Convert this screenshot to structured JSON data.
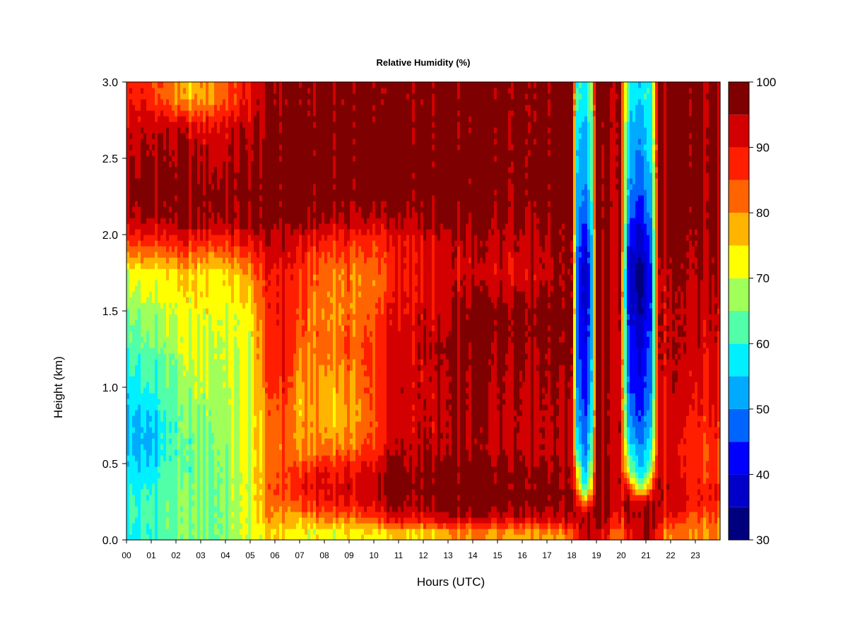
{
  "chart_data": {
    "type": "heatmap",
    "title": "Relative Humidity (%)",
    "xlabel": "Hours (UTC)",
    "ylabel": "Height (km)",
    "xlim": [
      0,
      24
    ],
    "ylim": [
      0.0,
      3.0
    ],
    "x_ticks": [
      "00",
      "01",
      "02",
      "03",
      "04",
      "05",
      "06",
      "07",
      "08",
      "09",
      "10",
      "11",
      "12",
      "13",
      "14",
      "15",
      "16",
      "17",
      "18",
      "19",
      "20",
      "21",
      "22",
      "23"
    ],
    "y_ticks": [
      "0.0",
      "0.5",
      "1.0",
      "1.5",
      "2.0",
      "2.5",
      "3.0"
    ],
    "colorbar": {
      "levels": [
        30,
        35,
        40,
        45,
        50,
        55,
        60,
        65,
        70,
        75,
        80,
        85,
        90,
        95,
        100
      ],
      "tick_labels": [
        "30",
        "40",
        "50",
        "60",
        "70",
        "80",
        "90",
        "100"
      ],
      "colors": [
        "#00007f",
        "#0000c8",
        "#0000ff",
        "#0064ff",
        "#00aaff",
        "#00f0ff",
        "#50ffa8",
        "#a0ff58",
        "#ffff00",
        "#ffb400",
        "#ff6400",
        "#ff1e00",
        "#d20000",
        "#7f0000"
      ]
    },
    "heights_km": [
      0.05,
      0.15,
      0.25,
      0.35,
      0.45,
      0.6,
      0.8,
      1.0,
      1.25,
      1.5,
      1.75,
      1.95,
      2.1,
      2.25,
      2.45,
      2.7,
      2.9
    ],
    "profiles": [
      {
        "hour": 0.0,
        "rh": [
          58,
          60,
          61,
          60,
          58,
          56,
          55,
          58,
          62,
          66,
          72,
          86,
          93,
          96,
          94,
          92,
          90
        ]
      },
      {
        "hour": 0.5,
        "rh": [
          58,
          60,
          60,
          58,
          55,
          52,
          53,
          58,
          62,
          66,
          72,
          86,
          94,
          97,
          95,
          93,
          88
        ]
      },
      {
        "hour": 1.0,
        "rh": [
          60,
          62,
          62,
          60,
          57,
          54,
          55,
          60,
          64,
          68,
          73,
          87,
          95,
          97,
          96,
          94,
          86
        ]
      },
      {
        "hour": 1.5,
        "rh": [
          62,
          63,
          63,
          62,
          61,
          60,
          60,
          62,
          65,
          70,
          73,
          87,
          95,
          97,
          96,
          94,
          84
        ]
      },
      {
        "hour": 2.0,
        "rh": [
          64,
          64,
          64,
          64,
          63,
          62,
          62,
          64,
          67,
          71,
          74,
          88,
          96,
          97,
          96,
          93,
          80
        ]
      },
      {
        "hour": 2.5,
        "rh": [
          64,
          64,
          64,
          64,
          63,
          63,
          65,
          67,
          70,
          72,
          75,
          88,
          96,
          97,
          96,
          92,
          76
        ]
      },
      {
        "hour": 3.0,
        "rh": [
          65,
          65,
          65,
          65,
          64,
          64,
          66,
          68,
          71,
          72,
          74,
          87,
          96,
          97,
          95,
          91,
          78
        ]
      },
      {
        "hour": 3.5,
        "rh": [
          65,
          65,
          65,
          65,
          65,
          66,
          67,
          68,
          70,
          72,
          74,
          87,
          96,
          97,
          95,
          91,
          80
        ]
      },
      {
        "hour": 4.0,
        "rh": [
          66,
          66,
          66,
          66,
          66,
          67,
          68,
          69,
          70,
          72,
          75,
          87,
          96,
          97,
          95,
          92,
          84
        ]
      },
      {
        "hour": 4.5,
        "rh": [
          68,
          68,
          68,
          68,
          68,
          69,
          69,
          70,
          71,
          72,
          76,
          88,
          96,
          97,
          96,
          93,
          86
        ]
      },
      {
        "hour": 5.0,
        "rh": [
          70,
          70,
          70,
          70,
          71,
          71,
          71,
          72,
          72,
          73,
          80,
          90,
          97,
          98,
          96,
          94,
          90
        ]
      },
      {
        "hour": 5.5,
        "rh": [
          74,
          76,
          78,
          78,
          78,
          77,
          78,
          80,
          82,
          84,
          86,
          92,
          97,
          98,
          97,
          95,
          94
        ]
      },
      {
        "hour": 6.0,
        "rh": [
          76,
          80,
          84,
          86,
          84,
          82,
          84,
          87,
          89,
          90,
          90,
          94,
          97,
          98,
          98,
          97,
          96
        ]
      },
      {
        "hour": 6.5,
        "rh": [
          75,
          78,
          82,
          86,
          86,
          84,
          85,
          87,
          89,
          90,
          90,
          93,
          97,
          98,
          98,
          98,
          97
        ]
      },
      {
        "hour": 7.0,
        "rh": [
          73,
          78,
          85,
          88,
          86,
          78,
          76,
          77,
          82,
          84,
          86,
          90,
          97,
          98,
          98,
          98,
          97
        ]
      },
      {
        "hour": 7.5,
        "rh": [
          72,
          80,
          88,
          90,
          88,
          80,
          78,
          80,
          82,
          82,
          84,
          89,
          97,
          98,
          98,
          98,
          97
        ]
      },
      {
        "hour": 8.0,
        "rh": [
          72,
          82,
          89,
          91,
          90,
          82,
          78,
          78,
          82,
          80,
          82,
          88,
          96,
          98,
          98,
          98,
          97
        ]
      },
      {
        "hour": 8.5,
        "rh": [
          72,
          82,
          90,
          92,
          90,
          82,
          76,
          78,
          82,
          80,
          82,
          88,
          95,
          98,
          98,
          98,
          97
        ]
      },
      {
        "hour": 9.0,
        "rh": [
          72,
          82,
          90,
          92,
          90,
          82,
          78,
          80,
          84,
          82,
          82,
          88,
          95,
          98,
          98,
          98,
          97
        ]
      },
      {
        "hour": 9.5,
        "rh": [
          74,
          84,
          91,
          92,
          91,
          84,
          80,
          82,
          84,
          82,
          80,
          86,
          94,
          98,
          98,
          98,
          97
        ]
      },
      {
        "hour": 10.0,
        "rh": [
          74,
          86,
          92,
          94,
          92,
          86,
          84,
          86,
          86,
          84,
          82,
          86,
          94,
          98,
          98,
          98,
          97
        ]
      },
      {
        "hour": 10.5,
        "rh": [
          74,
          90,
          96,
          98,
          96,
          92,
          90,
          90,
          90,
          88,
          86,
          88,
          94,
          98,
          98,
          98,
          97
        ]
      },
      {
        "hour": 11.0,
        "rh": [
          76,
          92,
          97,
          98,
          98,
          94,
          92,
          92,
          92,
          90,
          89,
          90,
          95,
          98,
          98,
          98,
          97
        ]
      },
      {
        "hour": 11.5,
        "rh": [
          76,
          92,
          96,
          98,
          96,
          94,
          92,
          93,
          93,
          92,
          90,
          91,
          95,
          98,
          98,
          98,
          97
        ]
      },
      {
        "hour": 12.0,
        "rh": [
          76,
          90,
          95,
          97,
          96,
          94,
          92,
          92,
          93,
          92,
          90,
          92,
          95,
          98,
          98,
          98,
          97
        ]
      },
      {
        "hour": 12.5,
        "rh": [
          77,
          92,
          96,
          98,
          97,
          94,
          93,
          93,
          94,
          92,
          90,
          92,
          96,
          98,
          98,
          98,
          97
        ]
      },
      {
        "hour": 13.0,
        "rh": [
          78,
          94,
          97,
          98,
          97,
          94,
          94,
          94,
          95,
          93,
          91,
          93,
          96,
          98,
          98,
          98,
          97
        ]
      },
      {
        "hour": 13.5,
        "rh": [
          80,
          95,
          98,
          98,
          98,
          95,
          95,
          95,
          96,
          95,
          92,
          93,
          96,
          98,
          98,
          98,
          97
        ]
      },
      {
        "hour": 14.0,
        "rh": [
          80,
          95,
          98,
          98,
          98,
          95,
          95,
          96,
          97,
          98,
          92,
          94,
          97,
          98,
          98,
          98,
          98
        ]
      },
      {
        "hour": 14.5,
        "rh": [
          80,
          95,
          98,
          98,
          98,
          95,
          95,
          96,
          97,
          98,
          92,
          95,
          97,
          98,
          98,
          98,
          98
        ]
      },
      {
        "hour": 15.0,
        "rh": [
          80,
          95,
          98,
          98,
          98,
          95,
          95,
          96,
          97,
          98,
          92,
          95,
          97,
          98,
          98,
          98,
          98
        ]
      },
      {
        "hour": 15.5,
        "rh": [
          80,
          95,
          98,
          98,
          98,
          95,
          95,
          96,
          97,
          98,
          92,
          95,
          97,
          98,
          98,
          98,
          98
        ]
      },
      {
        "hour": 16.0,
        "rh": [
          80,
          95,
          98,
          98,
          98,
          95,
          95,
          96,
          97,
          98,
          92,
          95,
          97,
          98,
          98,
          98,
          98
        ]
      },
      {
        "hour": 16.5,
        "rh": [
          80,
          95,
          98,
          98,
          98,
          95,
          95,
          96,
          97,
          98,
          93,
          95,
          97,
          98,
          98,
          98,
          98
        ]
      },
      {
        "hour": 17.0,
        "rh": [
          80,
          95,
          97,
          98,
          97,
          95,
          95,
          96,
          97,
          98,
          95,
          96,
          97,
          98,
          98,
          98,
          98
        ]
      },
      {
        "hour": 17.5,
        "rh": [
          80,
          94,
          96,
          97,
          96,
          95,
          95,
          96,
          97,
          98,
          96,
          97,
          98,
          98,
          98,
          98,
          98
        ]
      },
      {
        "hour": 18.0,
        "rh": [
          85,
          96,
          97,
          97,
          96,
          95,
          95,
          96,
          97,
          98,
          97,
          97,
          98,
          98,
          98,
          98,
          98
        ]
      },
      {
        "hour": 18.25,
        "rh": [
          92,
          96,
          90,
          80,
          72,
          60,
          52,
          48,
          46,
          46,
          46,
          48,
          50,
          52,
          54,
          56,
          60
        ]
      },
      {
        "hour": 18.5,
        "rh": [
          95,
          96,
          80,
          60,
          55,
          50,
          46,
          44,
          42,
          40,
          38,
          42,
          46,
          50,
          52,
          54,
          58
        ]
      },
      {
        "hour": 18.75,
        "rh": [
          95,
          96,
          86,
          70,
          62,
          56,
          52,
          48,
          46,
          44,
          42,
          46,
          50,
          54,
          56,
          58,
          62
        ]
      },
      {
        "hour": 19.0,
        "rh": [
          92,
          96,
          97,
          96,
          95,
          94,
          94,
          94,
          95,
          96,
          96,
          96,
          97,
          97,
          97,
          97,
          98
        ]
      },
      {
        "hour": 19.5,
        "rh": [
          88,
          94,
          96,
          96,
          95,
          94,
          94,
          94,
          95,
          96,
          96,
          96,
          97,
          97,
          97,
          97,
          98
        ]
      },
      {
        "hour": 20.0,
        "rh": [
          82,
          88,
          92,
          92,
          92,
          92,
          92,
          92,
          92,
          93,
          94,
          94,
          94,
          94,
          94,
          94,
          94
        ]
      },
      {
        "hour": 20.25,
        "rh": [
          88,
          94,
          94,
          88,
          70,
          60,
          52,
          48,
          46,
          42,
          40,
          44,
          48,
          52,
          54,
          56,
          60
        ]
      },
      {
        "hour": 20.75,
        "rh": [
          94,
          96,
          94,
          70,
          58,
          52,
          46,
          42,
          40,
          36,
          34,
          38,
          42,
          46,
          50,
          52,
          56
        ]
      },
      {
        "hour": 21.0,
        "rh": [
          95,
          96,
          94,
          70,
          58,
          52,
          48,
          44,
          42,
          38,
          36,
          40,
          44,
          48,
          52,
          54,
          58
        ]
      },
      {
        "hour": 21.25,
        "rh": [
          93,
          96,
          95,
          85,
          72,
          62,
          56,
          52,
          50,
          48,
          48,
          50,
          54,
          56,
          58,
          60,
          62
        ]
      },
      {
        "hour": 21.5,
        "rh": [
          86,
          92,
          94,
          95,
          94,
          93,
          93,
          93,
          94,
          94,
          94,
          95,
          96,
          96,
          96,
          96,
          96
        ]
      },
      {
        "hour": 22.0,
        "rh": [
          80,
          88,
          92,
          92,
          91,
          90,
          90,
          92,
          93,
          93,
          94,
          95,
          96,
          96,
          96,
          96,
          96
        ]
      },
      {
        "hour": 22.5,
        "rh": [
          80,
          86,
          90,
          90,
          88,
          88,
          90,
          92,
          93,
          93,
          94,
          95,
          96,
          96,
          96,
          96,
          96
        ]
      },
      {
        "hour": 23.0,
        "rh": [
          80,
          84,
          88,
          88,
          86,
          86,
          88,
          90,
          92,
          93,
          94,
          95,
          96,
          96,
          96,
          96,
          96
        ]
      },
      {
        "hour": 23.5,
        "rh": [
          80,
          84,
          88,
          88,
          86,
          86,
          88,
          90,
          92,
          93,
          94,
          95,
          96,
          96,
          96,
          96,
          96
        ]
      },
      {
        "hour": 23.9,
        "rh": [
          80,
          84,
          88,
          88,
          86,
          86,
          88,
          90,
          92,
          93,
          94,
          95,
          96,
          96,
          96,
          96,
          96
        ]
      }
    ]
  }
}
